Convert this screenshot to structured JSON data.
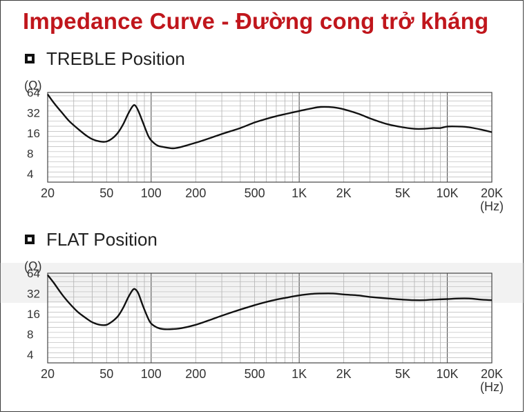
{
  "title": "Impedance Curve - Đường cong trở kháng",
  "chart_data": [
    {
      "type": "line",
      "title": "TREBLE Position",
      "ylabel": "(Ω)",
      "xlabel": "(Hz)",
      "x_scale": "log",
      "y_scale": "log",
      "xlim": [
        20,
        20000
      ],
      "ylim": [
        3,
        64
      ],
      "y_ticks": [
        "64",
        "32",
        "16",
        "8",
        "4"
      ],
      "y_tick_values": [
        64,
        32,
        16,
        8,
        4
      ],
      "x_ticks": [
        "20",
        "50",
        "100",
        "200",
        "500",
        "1K",
        "2K",
        "5K",
        "10K",
        "20K"
      ],
      "x_tick_values": [
        20,
        50,
        100,
        200,
        500,
        1000,
        2000,
        5000,
        10000,
        20000
      ],
      "grid": true,
      "series": [
        {
          "x": [
            20,
            22,
            25,
            28,
            32,
            36,
            40,
            45,
            50,
            55,
            60,
            65,
            70,
            75,
            78,
            82,
            88,
            95,
            100,
            110,
            120,
            140,
            160,
            200,
            250,
            300,
            400,
            500,
            600,
            700,
            800,
            1000,
            1200,
            1400,
            1700,
            2000,
            2500,
            3000,
            3500,
            4000,
            5000,
            6000,
            7000,
            8000,
            9000,
            10000,
            12000,
            14000,
            17000,
            20000
          ],
          "y": [
            60,
            45,
            32,
            24,
            18.5,
            15,
            13,
            12,
            12,
            13.5,
            16.5,
            22,
            31,
            40,
            41,
            34,
            23,
            15,
            12.5,
            10.5,
            10,
            9.5,
            10,
            11.5,
            13.5,
            15.5,
            19,
            23,
            26,
            28.5,
            30.5,
            34,
            37,
            39,
            38.5,
            36,
            31,
            26.5,
            23.5,
            21.5,
            19.5,
            18.5,
            18.5,
            19,
            19,
            20,
            20,
            19.5,
            18,
            16.5
          ]
        }
      ]
    },
    {
      "type": "line",
      "title": "FLAT Position",
      "ylabel": "(Ω)",
      "xlabel": "(Hz)",
      "x_scale": "log",
      "y_scale": "log",
      "xlim": [
        20,
        20000
      ],
      "ylim": [
        3,
        64
      ],
      "y_ticks": [
        "64",
        "32",
        "16",
        "8",
        "4"
      ],
      "y_tick_values": [
        64,
        32,
        16,
        8,
        4
      ],
      "x_ticks": [
        "20",
        "50",
        "100",
        "200",
        "500",
        "1K",
        "2K",
        "5K",
        "10K",
        "20K"
      ],
      "x_tick_values": [
        20,
        50,
        100,
        200,
        500,
        1000,
        2000,
        5000,
        10000,
        20000
      ],
      "grid": true,
      "series": [
        {
          "x": [
            20,
            22,
            25,
            28,
            32,
            36,
            40,
            45,
            50,
            55,
            60,
            65,
            70,
            75,
            78,
            82,
            88,
            95,
            100,
            110,
            120,
            140,
            160,
            200,
            250,
            300,
            400,
            500,
            600,
            700,
            800,
            1000,
            1200,
            1400,
            1700,
            2000,
            2500,
            3000,
            4000,
            5000,
            6000,
            7000,
            8000,
            10000,
            12000,
            14000,
            17000,
            20000
          ],
          "y": [
            60,
            46,
            31,
            23,
            17,
            14,
            12,
            11,
            11,
            12.5,
            15,
            20,
            28,
            36,
            37,
            32,
            21,
            14,
            11.5,
            10,
            9.5,
            9.5,
            9.8,
            11,
            13,
            15,
            18.5,
            21.5,
            24,
            26,
            27.5,
            30,
            31.5,
            32,
            32,
            31,
            30,
            28.5,
            27,
            26,
            25.5,
            25.5,
            26,
            26.5,
            27,
            27,
            26,
            25.5
          ]
        }
      ]
    }
  ]
}
